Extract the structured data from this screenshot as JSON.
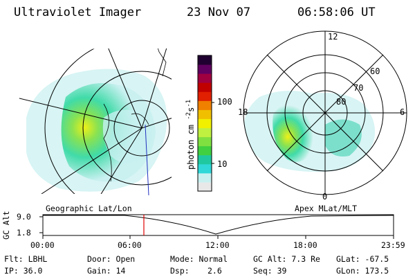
{
  "header": {
    "instrument": "Ultraviolet Imager",
    "date": "23 Nov 07",
    "time": "06:58:06 UT"
  },
  "colorbar": {
    "unit_label": "photon cm",
    "unit_exp1": "-2",
    "unit_mid": "s",
    "unit_exp2": "-1",
    "ticks": [
      "100",
      "10"
    ],
    "colors": [
      "#e8e8e8",
      "#c8f0f0",
      "#30d8d8",
      "#20c8a0",
      "#40d040",
      "#80e040",
      "#c0f040",
      "#f0f000",
      "#f0c000",
      "#f08000",
      "#e02000",
      "#c00000",
      "#a00040",
      "#600060",
      "#200030"
    ]
  },
  "geo_map": {
    "label": "Geographic Lat/Lon"
  },
  "polar_map": {
    "label": "Apex MLat/MLT",
    "mlt_labels": [
      "12",
      "18",
      "6",
      "0"
    ],
    "mlat_labels": [
      "60",
      "70",
      "80"
    ]
  },
  "timeline": {
    "axis_title": "GC Alt",
    "y_ticks": [
      "9.0",
      "1.8"
    ],
    "x_ticks": [
      "00:00",
      "06:00",
      "12:00",
      "18:00",
      "23:59"
    ],
    "current_marker_color": "#e00000"
  },
  "info": {
    "filter": "Flt: LBHL",
    "ip": "IP: 36.0",
    "door": "Door: Open",
    "gain": "Gain: 14",
    "mode": "Mode: Normal",
    "dsp_label": "Dsp:",
    "dsp_value": "2.6",
    "gc_alt": "GC Alt: 7.3 Re",
    "seq": "Seq: 39",
    "glat": "GLat: -67.5",
    "glon": "GLon: 173.5"
  }
}
